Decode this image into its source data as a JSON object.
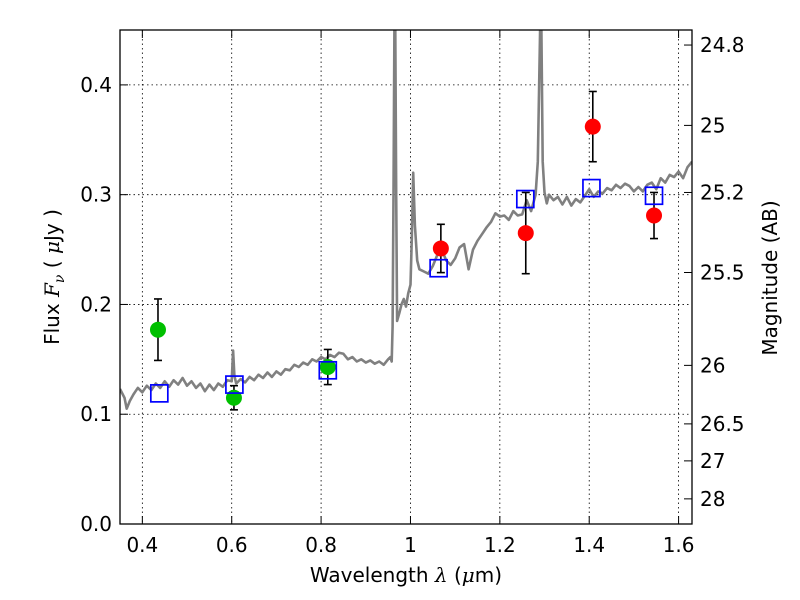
{
  "chart_data": {
    "type": "scatter",
    "title": "",
    "xlabel": {
      "prefix": "Wavelength",
      "symbol": "λ",
      "open": " (",
      "unit": "μ",
      "unit_rest": "m)"
    },
    "ylabel": {
      "prefix": "Flux",
      "symbol": "F",
      "sub": "ν",
      "open": " ( ",
      "unit": "μ",
      "unit_rest": "Jy )"
    },
    "y2label": "Magnitude (AB)",
    "xlim": [
      0.35,
      1.63
    ],
    "ylim": [
      0.0,
      0.45
    ],
    "grid": true,
    "x_ticks": [
      {
        "value": 0.4,
        "label": "0.4"
      },
      {
        "value": 0.6,
        "label": "0.6"
      },
      {
        "value": 0.8,
        "label": "0.8"
      },
      {
        "value": 1.0,
        "label": "1"
      },
      {
        "value": 1.2,
        "label": "1.2"
      },
      {
        "value": 1.4,
        "label": "1.4"
      },
      {
        "value": 1.6,
        "label": "1.6"
      }
    ],
    "y_ticks": [
      {
        "value": 0.0,
        "label": "0.0"
      },
      {
        "value": 0.1,
        "label": "0.1"
      },
      {
        "value": 0.2,
        "label": "0.2"
      },
      {
        "value": 0.3,
        "label": "0.3"
      },
      {
        "value": 0.4,
        "label": "0.4"
      }
    ],
    "y2_ticks": [
      {
        "flux": 0.4363,
        "label": "24.8"
      },
      {
        "flux": 0.3631,
        "label": "25"
      },
      {
        "flux": 0.302,
        "label": "25.2"
      },
      {
        "flux": 0.2291,
        "label": "25.5"
      },
      {
        "flux": 0.1445,
        "label": "26"
      },
      {
        "flux": 0.0912,
        "label": "26.5"
      },
      {
        "flux": 0.0575,
        "label": "27"
      },
      {
        "flux": 0.0229,
        "label": "28"
      }
    ],
    "colors": {
      "spectrum": "#808080",
      "green": "#00c000",
      "red": "#ff0000",
      "model_box": "#0000ff",
      "errorbar": "#000000",
      "grid": "#000000"
    },
    "series": [
      {
        "kind": "line",
        "color": "spectrum",
        "x": [
          0.35,
          0.36,
          0.365,
          0.372,
          0.38,
          0.385,
          0.39,
          0.4,
          0.41,
          0.42,
          0.43,
          0.44,
          0.45,
          0.46,
          0.47,
          0.48,
          0.49,
          0.5,
          0.51,
          0.52,
          0.53,
          0.54,
          0.55,
          0.56,
          0.57,
          0.58,
          0.59,
          0.6,
          0.603,
          0.606,
          0.61,
          0.62,
          0.63,
          0.64,
          0.65,
          0.66,
          0.67,
          0.68,
          0.69,
          0.7,
          0.71,
          0.72,
          0.73,
          0.74,
          0.75,
          0.76,
          0.77,
          0.78,
          0.79,
          0.8,
          0.81,
          0.82,
          0.83,
          0.84,
          0.85,
          0.86,
          0.87,
          0.88,
          0.89,
          0.9,
          0.91,
          0.92,
          0.93,
          0.94,
          0.95,
          0.955,
          0.958,
          0.96,
          0.962,
          0.964,
          0.966,
          0.968,
          0.97,
          0.975,
          0.98,
          0.985,
          0.99,
          0.995,
          1.0,
          1.003,
          1.006,
          1.01,
          1.015,
          1.02,
          1.03,
          1.04,
          1.05,
          1.06,
          1.07,
          1.08,
          1.09,
          1.1,
          1.11,
          1.12,
          1.13,
          1.14,
          1.15,
          1.16,
          1.17,
          1.18,
          1.19,
          1.2,
          1.21,
          1.22,
          1.23,
          1.24,
          1.25,
          1.26,
          1.27,
          1.28,
          1.285,
          1.29,
          1.293,
          1.296,
          1.3,
          1.305,
          1.31,
          1.32,
          1.33,
          1.34,
          1.35,
          1.36,
          1.37,
          1.38,
          1.39,
          1.4,
          1.41,
          1.42,
          1.43,
          1.44,
          1.45,
          1.46,
          1.47,
          1.48,
          1.49,
          1.5,
          1.51,
          1.52,
          1.53,
          1.54,
          1.55,
          1.56,
          1.57,
          1.58,
          1.59,
          1.6,
          1.61,
          1.62,
          1.63
        ],
        "y": [
          0.123,
          0.115,
          0.105,
          0.112,
          0.118,
          0.121,
          0.124,
          0.12,
          0.126,
          0.122,
          0.128,
          0.124,
          0.13,
          0.125,
          0.131,
          0.127,
          0.133,
          0.126,
          0.13,
          0.124,
          0.128,
          0.121,
          0.127,
          0.122,
          0.128,
          0.125,
          0.131,
          0.13,
          0.158,
          0.135,
          0.128,
          0.132,
          0.129,
          0.134,
          0.131,
          0.136,
          0.133,
          0.138,
          0.134,
          0.139,
          0.136,
          0.141,
          0.14,
          0.145,
          0.143,
          0.147,
          0.145,
          0.15,
          0.148,
          0.152,
          0.15,
          0.154,
          0.152,
          0.156,
          0.155,
          0.15,
          0.152,
          0.148,
          0.15,
          0.147,
          0.149,
          0.146,
          0.148,
          0.145,
          0.15,
          0.152,
          0.148,
          0.18,
          0.3,
          0.45,
          0.45,
          0.3,
          0.185,
          0.192,
          0.2,
          0.205,
          0.198,
          0.21,
          0.218,
          0.26,
          0.32,
          0.272,
          0.24,
          0.232,
          0.23,
          0.228,
          0.235,
          0.245,
          0.25,
          0.24,
          0.236,
          0.242,
          0.252,
          0.255,
          0.232,
          0.25,
          0.258,
          0.264,
          0.27,
          0.275,
          0.283,
          0.28,
          0.281,
          0.277,
          0.285,
          0.281,
          0.282,
          0.295,
          0.285,
          0.3,
          0.33,
          0.45,
          0.45,
          0.33,
          0.302,
          0.292,
          0.3,
          0.295,
          0.298,
          0.291,
          0.298,
          0.29,
          0.296,
          0.293,
          0.299,
          0.305,
          0.298,
          0.303,
          0.301,
          0.306,
          0.304,
          0.309,
          0.306,
          0.31,
          0.308,
          0.303,
          0.307,
          0.303,
          0.309,
          0.311,
          0.305,
          0.315,
          0.311,
          0.318,
          0.316,
          0.321,
          0.315,
          0.325,
          0.33
        ]
      },
      {
        "kind": "points",
        "marker": "circle",
        "color": "green",
        "x": [
          0.435,
          0.605,
          0.815
        ],
        "y": [
          0.177,
          0.115,
          0.143
        ],
        "err": [
          0.028,
          0.011,
          0.016
        ]
      },
      {
        "kind": "points",
        "marker": "circle",
        "color": "red",
        "x": [
          1.068,
          1.258,
          1.408,
          1.545
        ],
        "y": [
          0.251,
          0.265,
          0.362,
          0.281
        ],
        "err": [
          0.022,
          0.037,
          0.032,
          0.021
        ]
      },
      {
        "kind": "points",
        "marker": "open-square",
        "color": "model_box",
        "x": [
          0.438,
          0.606,
          0.815,
          1.063,
          1.257,
          1.405,
          1.545
        ],
        "y": [
          0.119,
          0.127,
          0.14,
          0.233,
          0.296,
          0.306,
          0.299
        ]
      }
    ]
  }
}
